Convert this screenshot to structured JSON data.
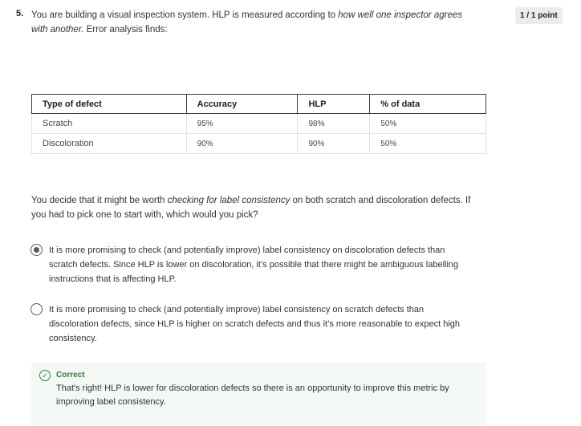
{
  "question": {
    "number": "5.",
    "text_before": "You are building a visual inspection system. HLP is measured according to ",
    "text_italic": "how well one inspector agrees with another.",
    "text_after": " Error analysis finds:",
    "points": "1 / 1 point"
  },
  "table": {
    "headers": [
      "Type of defect",
      "Accuracy",
      "HLP",
      "% of data"
    ],
    "rows": [
      [
        "Scratch",
        "95%",
        "98%",
        "50%"
      ],
      [
        "Discoloration",
        "90%",
        "90%",
        "50%"
      ]
    ]
  },
  "prompt": {
    "before": "You decide that it might be worth ",
    "italic": "checking for label consistency",
    "after": " on both scratch and discoloration defects. If you had to pick one to start with, which would you pick?"
  },
  "options": [
    {
      "label": "It is more promising to check (and potentially improve) label consistency on discoloration defects than scratch defects. Since HLP is lower on discoloration, it’s possible that there might be ambiguous labelling instructions that is affecting HLP.",
      "selected": true
    },
    {
      "label": "It is more promising to check (and potentially improve) label consistency on scratch defects than discoloration defects, since HLP is higher on scratch defects and thus it’s more reasonable to expect high consistency.",
      "selected": false
    }
  ],
  "feedback": {
    "icon": "check-circle-icon",
    "title": "Correct",
    "text": "That's right! HLP is lower for discoloration defects so there is an opportunity to improve this metric by improving label consistency."
  }
}
